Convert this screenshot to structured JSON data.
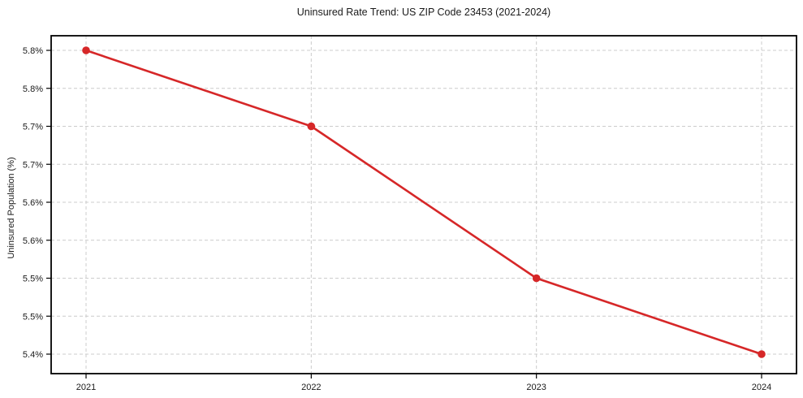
{
  "chart_data": {
    "type": "line",
    "title": "Uninsured Rate Trend: US ZIP Code 23453 (2021-2024)",
    "xlabel": "",
    "ylabel": "Uninsured Population (%)",
    "x": [
      2021,
      2022,
      2023,
      2024
    ],
    "values": [
      5.8,
      5.7,
      5.5,
      5.4
    ],
    "x_tick_labels": [
      "2021",
      "2022",
      "2023",
      "2024"
    ],
    "y_ticks": [
      5.8,
      5.75,
      5.7,
      5.65,
      5.6,
      5.55,
      5.5,
      5.45,
      5.4
    ],
    "y_tick_labels": [
      "5.8%",
      "5.8%",
      "5.7%",
      "5.7%",
      "5.6%",
      "5.6%",
      "5.5%",
      "5.5%",
      "5.4%"
    ],
    "ylim": [
      5.4,
      5.8
    ],
    "grid": true,
    "legend_position": "none",
    "colors": {
      "line": "#d62728",
      "marker": "#d62728",
      "grid": "#cccccc",
      "axis": "#000000",
      "text": "#1a1a1a",
      "background": "#ffffff"
    }
  }
}
